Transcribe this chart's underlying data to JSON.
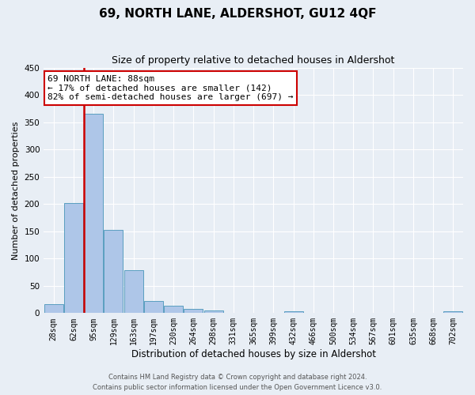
{
  "title": "69, NORTH LANE, ALDERSHOT, GU12 4QF",
  "subtitle": "Size of property relative to detached houses in Aldershot",
  "xlabel": "Distribution of detached houses by size in Aldershot",
  "ylabel": "Number of detached properties",
  "footer_line1": "Contains HM Land Registry data © Crown copyright and database right 2024.",
  "footer_line2": "Contains public sector information licensed under the Open Government Licence v3.0.",
  "annotation_title": "69 NORTH LANE: 88sqm",
  "annotation_line1": "← 17% of detached houses are smaller (142)",
  "annotation_line2": "82% of semi-detached houses are larger (697) →",
  "bar_categories": [
    "28sqm",
    "62sqm",
    "95sqm",
    "129sqm",
    "163sqm",
    "197sqm",
    "230sqm",
    "264sqm",
    "298sqm",
    "331sqm",
    "365sqm",
    "399sqm",
    "432sqm",
    "466sqm",
    "500sqm",
    "534sqm",
    "567sqm",
    "601sqm",
    "635sqm",
    "668sqm",
    "702sqm"
  ],
  "bar_values": [
    16,
    202,
    365,
    153,
    78,
    22,
    13,
    8,
    5,
    0,
    0,
    0,
    4,
    0,
    0,
    0,
    0,
    0,
    0,
    0,
    3
  ],
  "bar_color": "#aec6e8",
  "bar_edge_color": "#5a9fc0",
  "vline_color": "#cc0000",
  "vline_x": 1.5,
  "annotation_box_edge_color": "#cc0000",
  "background_color": "#e8eef5",
  "ylim": [
    0,
    450
  ],
  "yticks": [
    0,
    50,
    100,
    150,
    200,
    250,
    300,
    350,
    400,
    450
  ],
  "title_fontsize": 11,
  "subtitle_fontsize": 9,
  "tick_fontsize": 7,
  "ylabel_fontsize": 8,
  "xlabel_fontsize": 8.5
}
